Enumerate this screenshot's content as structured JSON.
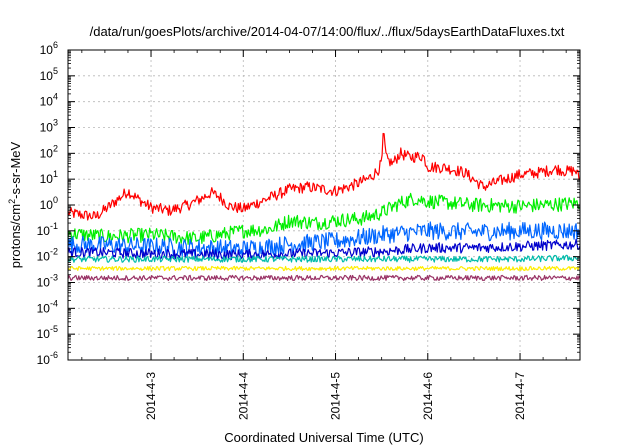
{
  "chart_data": {
    "type": "line",
    "title": "/data/run/goesPlots/archive/2014-04-07/14:00/flux/../flux/5daysEarthDataFluxes.txt",
    "xlabel": "Coordinated Universal Time (UTC)",
    "ylabel": "protons/cm²-s-sr-MeV",
    "ylabel_parts": {
      "pre": "protons/cm",
      "sup": "2",
      "post": "-s-sr-MeV"
    },
    "yscale": "log",
    "ylim": [
      1e-06,
      1000000.0
    ],
    "xlim": [
      2.1,
      7.65
    ],
    "grid": true,
    "y_ticks": [
      {
        "value": 1e-06,
        "base": "10",
        "exp": "-6"
      },
      {
        "value": 1e-05,
        "base": "10",
        "exp": "-5"
      },
      {
        "value": 0.0001,
        "base": "10",
        "exp": "-4"
      },
      {
        "value": 0.001,
        "base": "10",
        "exp": "-3"
      },
      {
        "value": 0.01,
        "base": "10",
        "exp": "-2"
      },
      {
        "value": 0.1,
        "base": "10",
        "exp": "-1"
      },
      {
        "value": 1,
        "base": "10",
        "exp": "0"
      },
      {
        "value": 10,
        "base": "10",
        "exp": "1"
      },
      {
        "value": 100,
        "base": "10",
        "exp": "2"
      },
      {
        "value": 1000,
        "base": "10",
        "exp": "3"
      },
      {
        "value": 10000,
        "base": "10",
        "exp": "4"
      },
      {
        "value": 100000,
        "base": "10",
        "exp": "5"
      },
      {
        "value": 1000000,
        "base": "10",
        "exp": "6"
      }
    ],
    "x_ticks": [
      {
        "value": 3,
        "label": "2014-4-3"
      },
      {
        "value": 4,
        "label": "2014-4-4"
      },
      {
        "value": 5,
        "label": "2014-4-5"
      },
      {
        "value": 6,
        "label": "2014-4-6"
      },
      {
        "value": 7,
        "label": "2014-4-7"
      }
    ],
    "series": [
      {
        "color": "#ff0000",
        "noise": 0.22,
        "points": [
          [
            2.1,
            0.5
          ],
          [
            2.4,
            0.35
          ],
          [
            2.55,
            0.9
          ],
          [
            2.75,
            3.5
          ],
          [
            2.85,
            1.8
          ],
          [
            3.0,
            0.8
          ],
          [
            3.2,
            0.6
          ],
          [
            3.4,
            1.0
          ],
          [
            3.55,
            1.8
          ],
          [
            3.65,
            3.0
          ],
          [
            3.75,
            2.0
          ],
          [
            3.85,
            0.9
          ],
          [
            4.0,
            0.7
          ],
          [
            4.1,
            1.0
          ],
          [
            4.3,
            2.0
          ],
          [
            4.5,
            4.0
          ],
          [
            4.7,
            5.0
          ],
          [
            5.0,
            3.5
          ],
          [
            5.2,
            6.0
          ],
          [
            5.35,
            10.0
          ],
          [
            5.45,
            20.0
          ],
          [
            5.5,
            40.0
          ],
          [
            5.52,
            700.0
          ],
          [
            5.55,
            60.0
          ],
          [
            5.62,
            40.0
          ],
          [
            5.7,
            100.0
          ],
          [
            5.8,
            70.0
          ],
          [
            5.95,
            80.0
          ],
          [
            6.0,
            30.0
          ],
          [
            6.2,
            28.0
          ],
          [
            6.4,
            18.0
          ],
          [
            6.6,
            5.0
          ],
          [
            6.8,
            9.0
          ],
          [
            7.0,
            15.0
          ],
          [
            7.2,
            18.0
          ],
          [
            7.4,
            25.0
          ],
          [
            7.5,
            20.0
          ],
          [
            7.6,
            22.0
          ],
          [
            7.65,
            10.0
          ]
        ]
      },
      {
        "color": "#00ee00",
        "noise": 0.28,
        "points": [
          [
            2.1,
            0.08
          ],
          [
            2.5,
            0.06
          ],
          [
            3.0,
            0.07
          ],
          [
            3.5,
            0.05
          ],
          [
            4.0,
            0.1
          ],
          [
            4.3,
            0.12
          ],
          [
            4.5,
            0.25
          ],
          [
            4.8,
            0.2
          ],
          [
            5.0,
            0.25
          ],
          [
            5.3,
            0.3
          ],
          [
            5.5,
            0.5
          ],
          [
            5.7,
            1.2
          ],
          [
            5.85,
            1.8
          ],
          [
            6.0,
            1.4
          ],
          [
            6.5,
            1.0
          ],
          [
            7.0,
            0.9
          ],
          [
            7.5,
            1.1
          ],
          [
            7.65,
            1.2
          ]
        ]
      },
      {
        "color": "#0066ff",
        "noise": 0.35,
        "points": [
          [
            2.1,
            0.03
          ],
          [
            3.0,
            0.025
          ],
          [
            4.0,
            0.02
          ],
          [
            4.5,
            0.03
          ],
          [
            5.0,
            0.04
          ],
          [
            5.5,
            0.07
          ],
          [
            6.0,
            0.1
          ],
          [
            6.5,
            0.09
          ],
          [
            7.0,
            0.1
          ],
          [
            7.65,
            0.1
          ]
        ]
      },
      {
        "color": "#0000cc",
        "noise": 0.2,
        "points": [
          [
            2.1,
            0.015
          ],
          [
            3.0,
            0.013
          ],
          [
            4.0,
            0.012
          ],
          [
            5.0,
            0.014
          ],
          [
            5.5,
            0.016
          ],
          [
            6.0,
            0.022
          ],
          [
            6.5,
            0.022
          ],
          [
            7.0,
            0.025
          ],
          [
            7.65,
            0.03
          ]
        ]
      },
      {
        "color": "#00bbaa",
        "noise": 0.12,
        "points": [
          [
            2.1,
            0.008
          ],
          [
            3.0,
            0.008
          ],
          [
            4.0,
            0.008
          ],
          [
            5.0,
            0.008
          ],
          [
            6.0,
            0.008
          ],
          [
            7.0,
            0.008
          ],
          [
            7.65,
            0.009
          ]
        ]
      },
      {
        "color": "#ffee00",
        "noise": 0.08,
        "points": [
          [
            2.1,
            0.0035
          ],
          [
            3.0,
            0.0035
          ],
          [
            4.0,
            0.0035
          ],
          [
            5.0,
            0.0035
          ],
          [
            6.0,
            0.0035
          ],
          [
            7.0,
            0.0035
          ],
          [
            7.65,
            0.0035
          ]
        ]
      },
      {
        "color": "#993366",
        "noise": 0.1,
        "points": [
          [
            2.1,
            0.0015
          ],
          [
            3.0,
            0.0015
          ],
          [
            4.0,
            0.0015
          ],
          [
            5.0,
            0.0015
          ],
          [
            6.0,
            0.0015
          ],
          [
            7.0,
            0.0015
          ],
          [
            7.65,
            0.0015
          ]
        ]
      }
    ]
  }
}
